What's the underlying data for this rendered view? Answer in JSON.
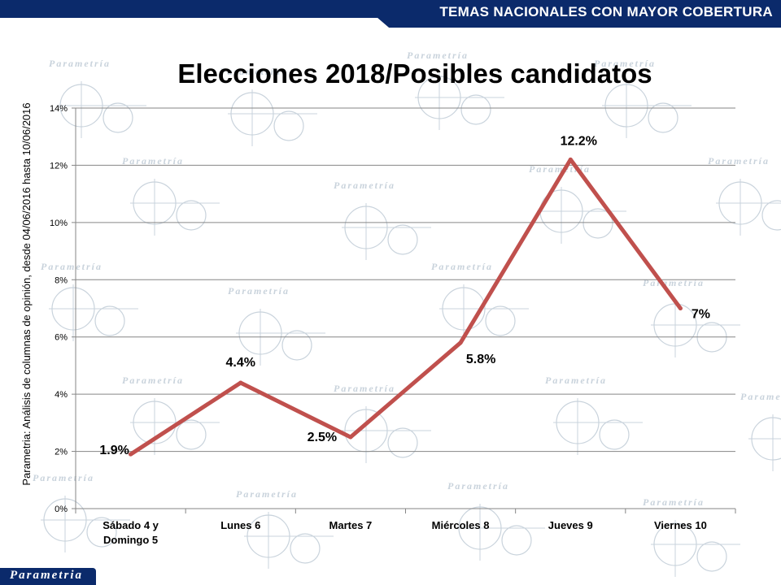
{
  "header": {
    "banner_text": "TEMAS NACIONALES CON MAYOR COBERTURA"
  },
  "side_label": "Parametria: Análisis de columnas de opinión, desde 04/06/2016 hasta  10/06/2016",
  "footer": {
    "logo_text": "Parametria"
  },
  "watermark_text": "Parametría",
  "colors": {
    "banner": "#0b2a6b",
    "line": "#c0504d",
    "grid": "#868686"
  },
  "chart_data": {
    "type": "line",
    "title": "Elecciones 2018/Posibles candidatos",
    "categories": [
      [
        "Sábado 4 y",
        "Domingo 5"
      ],
      [
        "Lunes 6"
      ],
      [
        "Martes 7"
      ],
      [
        "Miércoles 8"
      ],
      [
        "Jueves 9"
      ],
      [
        "Viernes 10"
      ]
    ],
    "values": [
      1.9,
      4.4,
      2.5,
      5.8,
      12.2,
      7
    ],
    "data_labels": [
      "1.9%",
      "4.4%",
      "2.5%",
      "5.8%",
      "12.2%",
      "7%"
    ],
    "yticks": [
      "0%",
      "2%",
      "4%",
      "6%",
      "8%",
      "10%",
      "12%",
      "14%"
    ],
    "ylim": [
      0,
      14
    ],
    "grid": true,
    "legend": false
  }
}
